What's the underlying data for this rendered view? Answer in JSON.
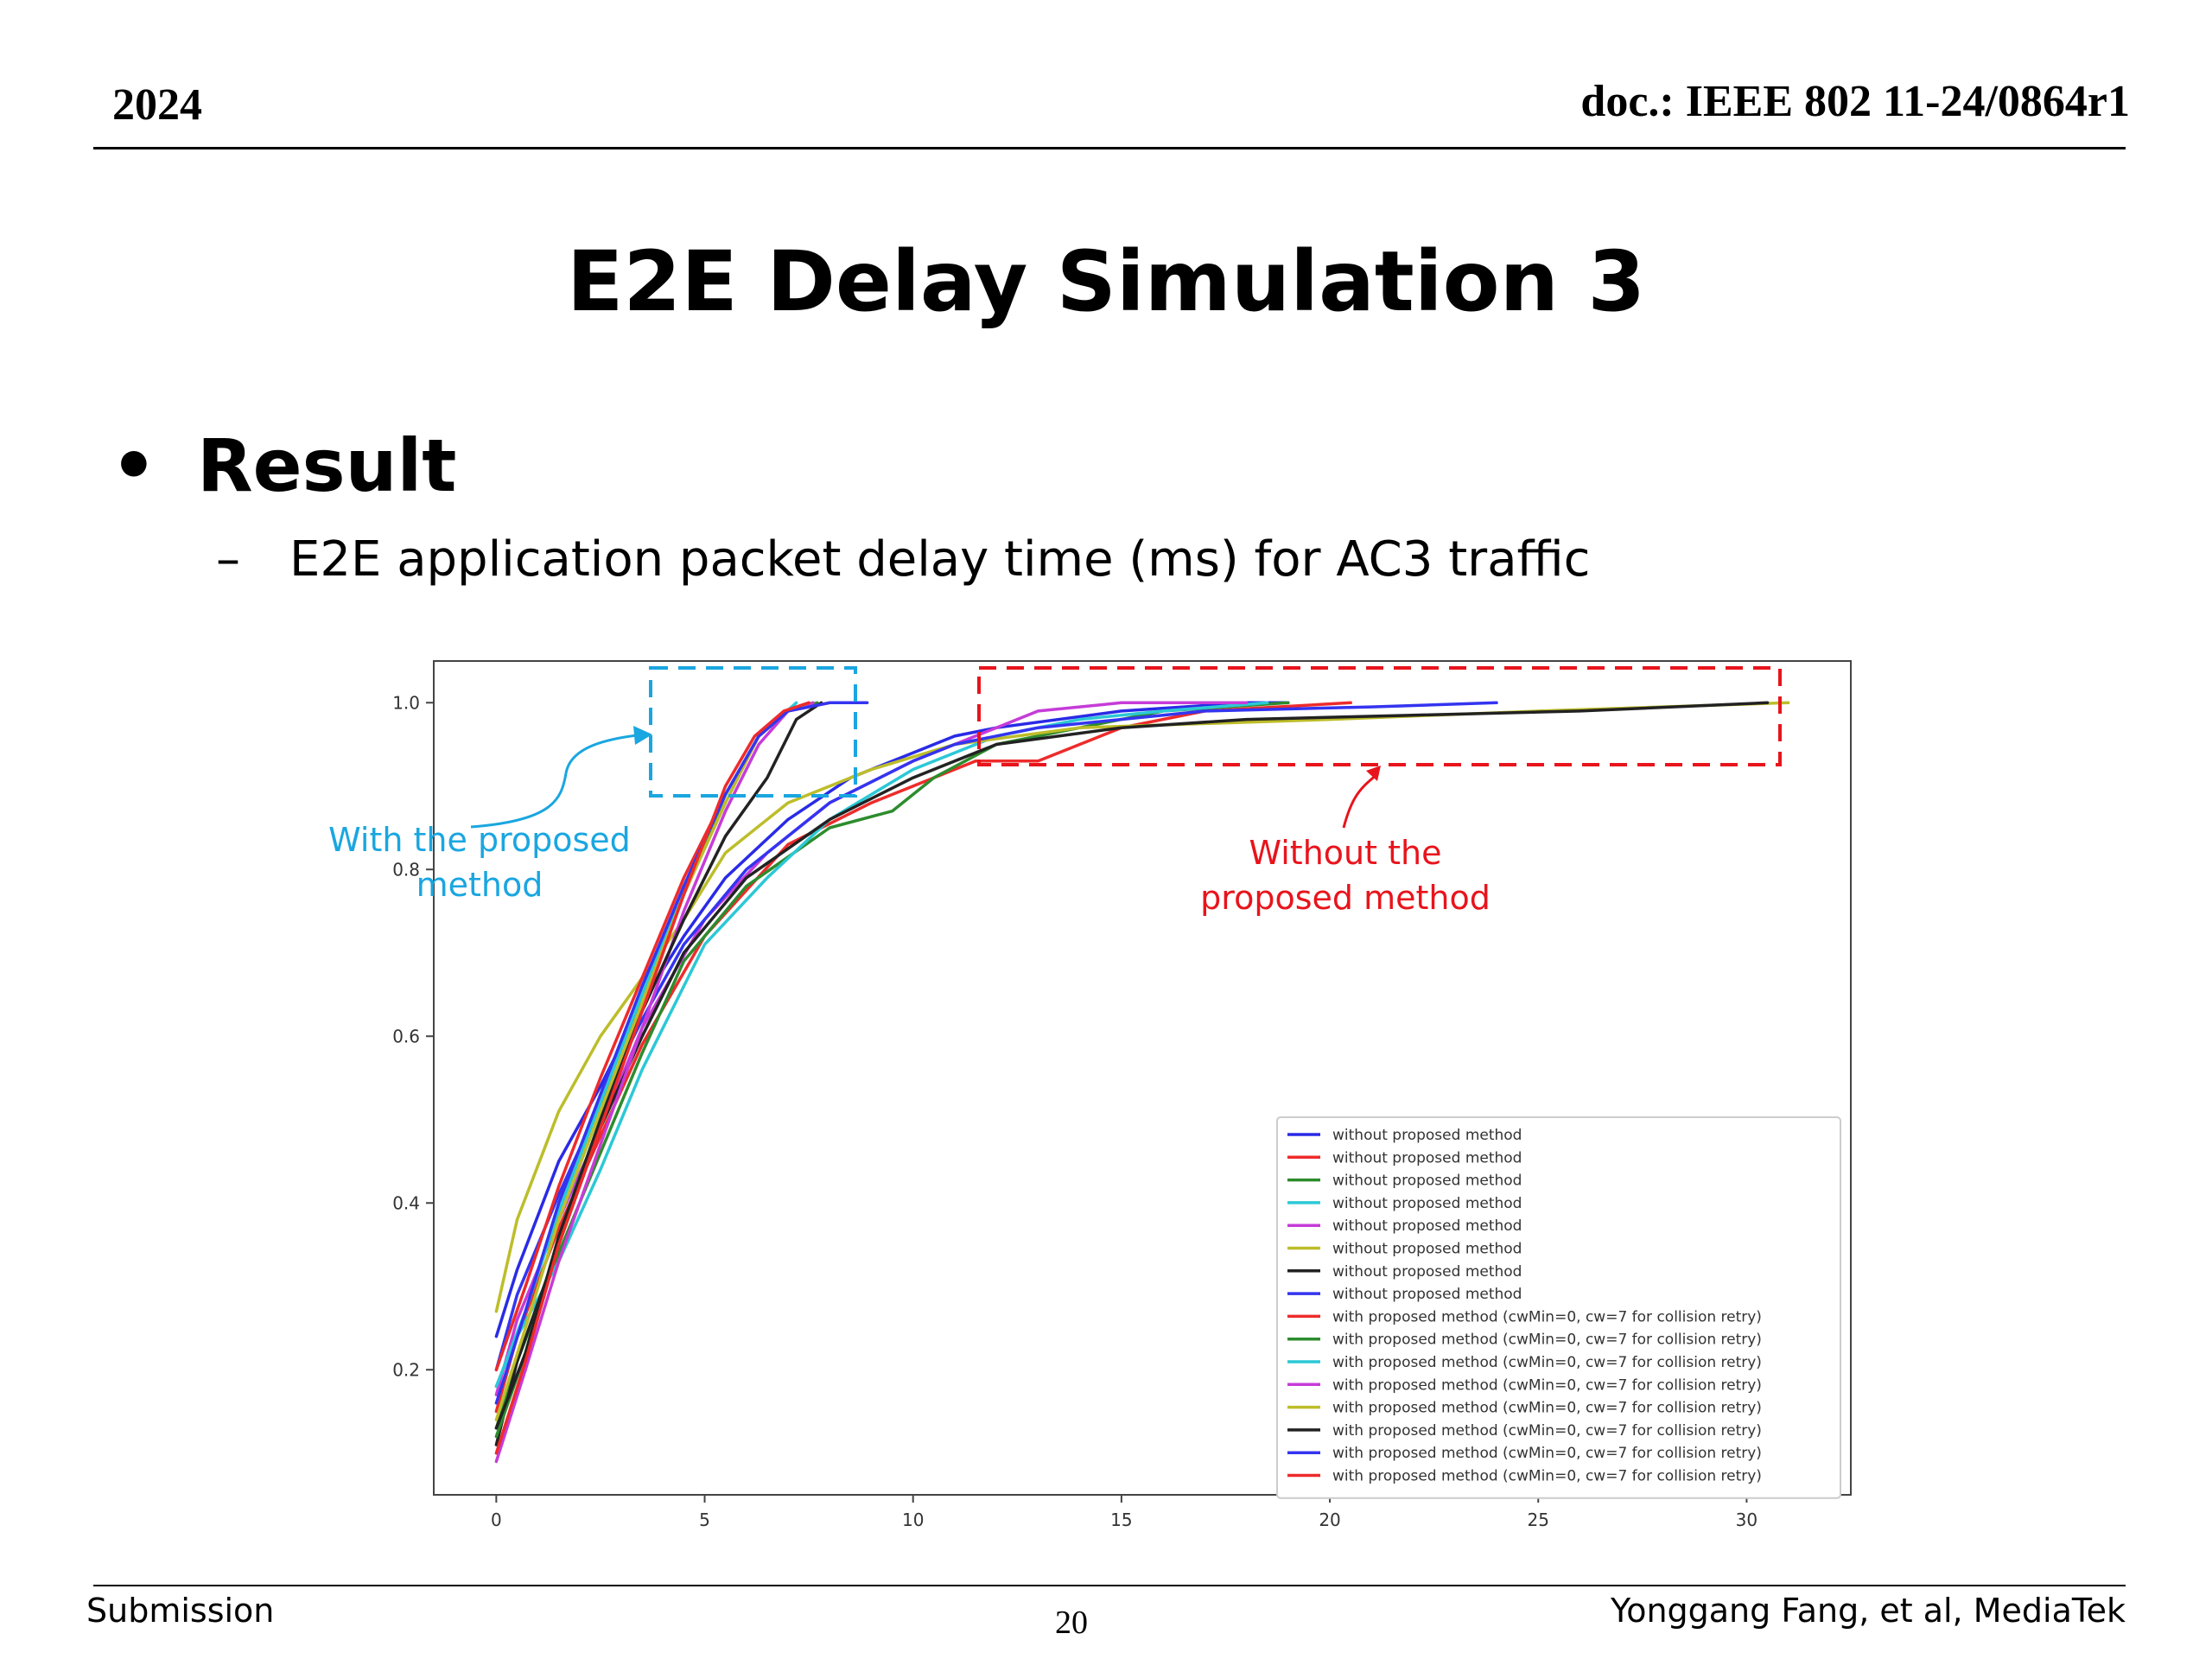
{
  "header": {
    "year": "2024",
    "doc": "doc.: IEEE 802 11-24/0864r1"
  },
  "title": "E2E Delay Simulation 3",
  "bullet": {
    "marker": "•",
    "text": "Result"
  },
  "sub_bullet": {
    "marker": "–",
    "text": "E2E application packet delay time (ms) for AC3 traffic"
  },
  "footer": {
    "left": "Submission",
    "page": "20",
    "right": "Yonggang Fang, et al, MediaTek"
  },
  "colors": {
    "blue_annotation": "#1aa6e0",
    "red_annotation": "#e8141c"
  },
  "annotations": {
    "with_line1": "With the proposed",
    "with_line2": "method",
    "without_line1": "Without the",
    "without_line2": "proposed method"
  },
  "chart_data": {
    "type": "line",
    "xlim": [
      -1.5,
      32.5
    ],
    "ylim": [
      0.05,
      1.05
    ],
    "xticks": [
      0,
      5,
      10,
      15,
      20,
      25,
      30
    ],
    "yticks": [
      0.2,
      0.4,
      0.6,
      0.8,
      1.0
    ],
    "xtick_labels": [
      "0",
      "5",
      "10",
      "15",
      "20",
      "25",
      "30"
    ],
    "ytick_labels": [
      "0.2",
      "0.4",
      "0.6",
      "0.8",
      "1.0"
    ],
    "grid": false,
    "legend_position": "lower-right",
    "series": [
      {
        "name": "without proposed method",
        "color": "#2a2ae6",
        "x": [
          0,
          0.5,
          1.5,
          2.5,
          3.5,
          4.5,
          5.5,
          7,
          8.5,
          10,
          11,
          12,
          15,
          18,
          19
        ],
        "y": [
          0.24,
          0.32,
          0.45,
          0.54,
          0.64,
          0.72,
          0.79,
          0.86,
          0.91,
          0.94,
          0.96,
          0.97,
          0.99,
          1.0,
          1.0
        ]
      },
      {
        "name": "without proposed method",
        "color": "#ee2b2b",
        "x": [
          0,
          0.5,
          1.5,
          2.5,
          3.5,
          5,
          7,
          9,
          10.5,
          11.5,
          13,
          15,
          17,
          20.5
        ],
        "y": [
          0.15,
          0.24,
          0.37,
          0.48,
          0.59,
          0.72,
          0.83,
          0.88,
          0.91,
          0.93,
          0.93,
          0.97,
          0.99,
          1.0
        ]
      },
      {
        "name": "without proposed method",
        "color": "#2d8c2d",
        "x": [
          0,
          0.5,
          1.5,
          2.5,
          3.5,
          4.5,
          6,
          8,
          9.5,
          10.5,
          12,
          14,
          16,
          19
        ],
        "y": [
          0.13,
          0.21,
          0.34,
          0.46,
          0.58,
          0.69,
          0.78,
          0.85,
          0.87,
          0.91,
          0.95,
          0.97,
          0.99,
          1.0
        ]
      },
      {
        "name": "without proposed method",
        "color": "#2cc8d6",
        "x": [
          0,
          0.5,
          1.5,
          2.5,
          3.5,
          5,
          6.5,
          8,
          10,
          12,
          14,
          16,
          18.5
        ],
        "y": [
          0.18,
          0.24,
          0.33,
          0.44,
          0.56,
          0.71,
          0.79,
          0.86,
          0.92,
          0.96,
          0.98,
          0.99,
          1.0
        ]
      },
      {
        "name": "without proposed method",
        "color": "#c63cd8",
        "x": [
          0,
          0.5,
          1.5,
          2.5,
          3.5,
          5,
          6.5,
          8,
          10,
          12,
          13,
          15,
          18
        ],
        "y": [
          0.17,
          0.26,
          0.38,
          0.49,
          0.61,
          0.74,
          0.82,
          0.88,
          0.93,
          0.97,
          0.99,
          1.0,
          1.0
        ]
      },
      {
        "name": "without proposed method",
        "color": "#bdbd2a",
        "x": [
          0,
          0.5,
          1.5,
          2.5,
          3.5,
          4.5,
          5.5,
          7,
          9,
          11,
          14,
          20,
          25,
          31
        ],
        "y": [
          0.27,
          0.38,
          0.51,
          0.6,
          0.67,
          0.74,
          0.82,
          0.88,
          0.92,
          0.95,
          0.97,
          0.98,
          0.99,
          1.0
        ]
      },
      {
        "name": "without proposed method",
        "color": "#222222",
        "x": [
          0,
          0.5,
          1.5,
          2.5,
          3.5,
          4.5,
          6,
          8,
          10,
          12,
          15,
          18,
          22,
          26,
          30.5
        ],
        "y": [
          0.11,
          0.21,
          0.35,
          0.49,
          0.6,
          0.7,
          0.79,
          0.86,
          0.91,
          0.95,
          0.97,
          0.98,
          0.985,
          0.99,
          1.0
        ]
      },
      {
        "name": "without proposed method",
        "color": "#3434f0",
        "x": [
          0,
          0.5,
          1.5,
          2.5,
          3.5,
          4.5,
          6,
          8,
          10,
          11,
          13,
          17,
          21,
          24
        ],
        "y": [
          0.2,
          0.29,
          0.41,
          0.52,
          0.62,
          0.71,
          0.8,
          0.88,
          0.93,
          0.95,
          0.97,
          0.99,
          0.995,
          1.0
        ]
      },
      {
        "name": "with proposed method (cwMin=0, cw=7 for collision retry)",
        "color": "#ee2b2b",
        "x": [
          0,
          0.7,
          1.5,
          2.5,
          3.5,
          4.5,
          5.5,
          6.3,
          7,
          8
        ],
        "y": [
          0.2,
          0.3,
          0.42,
          0.55,
          0.67,
          0.79,
          0.89,
          0.96,
          0.99,
          1.0
        ]
      },
      {
        "name": "with proposed method (cwMin=0, cw=7 for collision retry)",
        "color": "#2d8c2d",
        "x": [
          0,
          0.7,
          1.5,
          2.5,
          3.5,
          4.5,
          5.5,
          6.3,
          7,
          7.7
        ],
        "y": [
          0.12,
          0.22,
          0.36,
          0.5,
          0.64,
          0.77,
          0.89,
          0.96,
          0.99,
          1.0
        ]
      },
      {
        "name": "with proposed method (cwMin=0, cw=7 for collision retry)",
        "color": "#2cc8d6",
        "x": [
          0,
          0.7,
          1.5,
          2.5,
          3.5,
          4.5,
          5.5,
          6.3,
          7.2
        ],
        "y": [
          0.18,
          0.27,
          0.39,
          0.52,
          0.65,
          0.78,
          0.89,
          0.96,
          1.0
        ]
      },
      {
        "name": "with proposed method (cwMin=0, cw=7 for collision retry)",
        "color": "#c63cd8",
        "x": [
          0,
          0.7,
          1.5,
          2.5,
          3.5,
          4.5,
          5.5,
          6.3,
          7,
          7.6
        ],
        "y": [
          0.09,
          0.2,
          0.33,
          0.47,
          0.61,
          0.75,
          0.87,
          0.95,
          0.99,
          1.0
        ]
      },
      {
        "name": "with proposed method (cwMin=0, cw=7 for collision retry)",
        "color": "#bdbd2a",
        "x": [
          0,
          0.7,
          1.5,
          2.5,
          3.5,
          4.5,
          5.5,
          6.3,
          7,
          7.5
        ],
        "y": [
          0.14,
          0.25,
          0.38,
          0.51,
          0.64,
          0.77,
          0.88,
          0.96,
          0.99,
          1.0
        ]
      },
      {
        "name": "with proposed method (cwMin=0, cw=7 for collision retry)",
        "color": "#222222",
        "x": [
          0,
          0.7,
          1.5,
          2.5,
          3.5,
          4.5,
          5.5,
          6.5,
          7.2,
          7.8
        ],
        "y": [
          0.13,
          0.22,
          0.36,
          0.5,
          0.63,
          0.74,
          0.84,
          0.91,
          0.98,
          1.0
        ]
      },
      {
        "name": "with proposed method (cwMin=0, cw=7 for collision retry)",
        "color": "#3434f0",
        "x": [
          0,
          0.7,
          1.5,
          2.5,
          3.5,
          4.5,
          5.5,
          6.3,
          7,
          8,
          8.9
        ],
        "y": [
          0.16,
          0.27,
          0.4,
          0.53,
          0.66,
          0.78,
          0.89,
          0.96,
          0.99,
          1.0,
          1.0
        ]
      },
      {
        "name": "with proposed method (cwMin=0, cw=7 for collision retry)",
        "color": "#ee2b2b",
        "x": [
          0,
          0.7,
          1.5,
          2.5,
          3.5,
          4.5,
          5.5,
          6.2,
          6.9,
          7.5
        ],
        "y": [
          0.1,
          0.21,
          0.35,
          0.49,
          0.63,
          0.77,
          0.9,
          0.96,
          0.99,
          1.0
        ]
      }
    ]
  }
}
